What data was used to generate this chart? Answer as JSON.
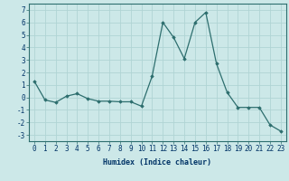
{
  "x": [
    0,
    1,
    2,
    3,
    4,
    5,
    6,
    7,
    8,
    9,
    10,
    11,
    12,
    13,
    14,
    15,
    16,
    17,
    18,
    19,
    20,
    21,
    22,
    23
  ],
  "y": [
    1.3,
    -0.2,
    -0.4,
    0.1,
    0.3,
    -0.1,
    -0.3,
    -0.3,
    -0.35,
    -0.35,
    -0.7,
    1.7,
    6.0,
    4.8,
    3.1,
    6.0,
    6.8,
    2.7,
    0.4,
    -0.8,
    -0.8,
    -0.8,
    -2.2,
    -2.7
  ],
  "line_color": "#2d6e6e",
  "marker": "D",
  "markersize": 1.8,
  "linewidth": 0.9,
  "xlabel": "Humidex (Indice chaleur)",
  "xlim": [
    -0.5,
    23.5
  ],
  "ylim": [
    -3.5,
    7.5
  ],
  "yticks": [
    -3,
    -2,
    -1,
    0,
    1,
    2,
    3,
    4,
    5,
    6,
    7
  ],
  "xticks": [
    0,
    1,
    2,
    3,
    4,
    5,
    6,
    7,
    8,
    9,
    10,
    11,
    12,
    13,
    14,
    15,
    16,
    17,
    18,
    19,
    20,
    21,
    22,
    23
  ],
  "bg_color": "#cce8e8",
  "grid_color": "#b0d4d4",
  "label_color": "#003366",
  "xlabel_fontsize": 6.0,
  "tick_fontsize": 5.5
}
